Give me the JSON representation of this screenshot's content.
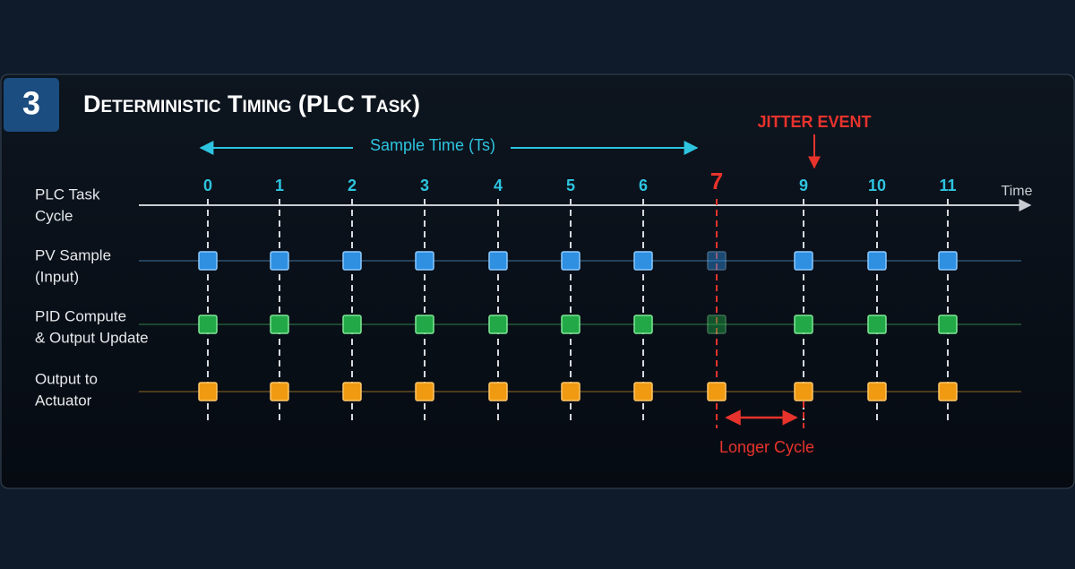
{
  "header": {
    "badge": "3",
    "title": "Deterministic Timing (PLC Task)"
  },
  "labels": {
    "sample_time": "Sample Time (Ts)",
    "jitter_event": "JITTER EVENT",
    "time": "Time",
    "longer_cycle": "Longer Cycle"
  },
  "ticks": [
    "0",
    "1",
    "2",
    "3",
    "4",
    "5",
    "6",
    "7",
    "9",
    "10",
    "11"
  ],
  "rows": [
    [
      "PLC Task",
      "Cycle"
    ],
    [
      "PV Sample",
      "(Input)"
    ],
    [
      "PID Compute",
      "& Output Update"
    ],
    [
      "Output to",
      "Actuator"
    ]
  ]
}
